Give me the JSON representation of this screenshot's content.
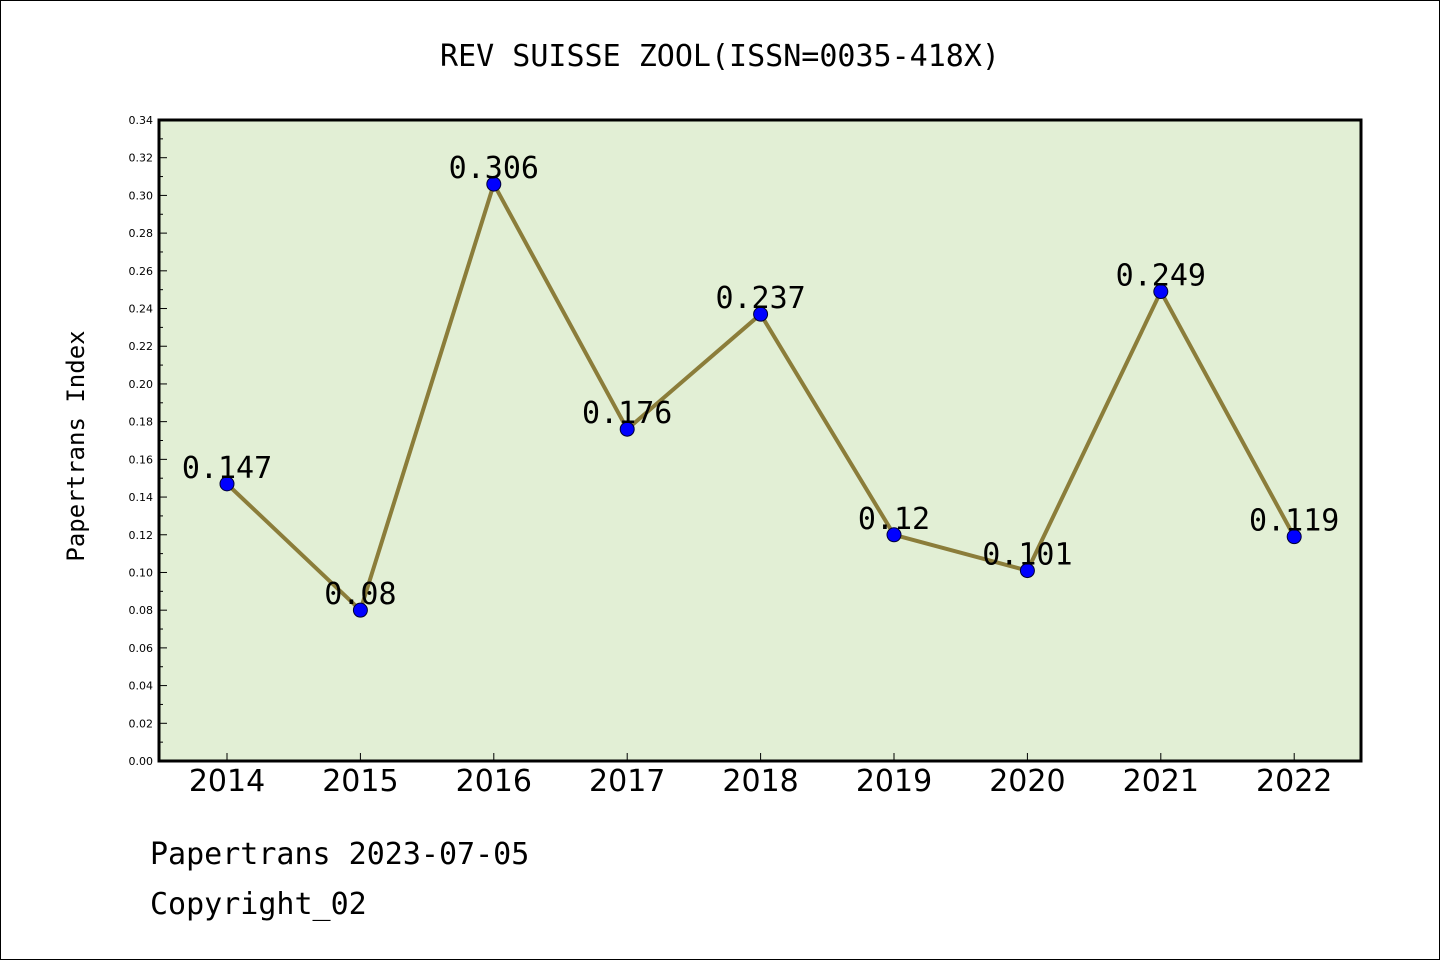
{
  "chart_data": {
    "type": "line",
    "title": "REV SUISSE ZOOL(ISSN=0035-418X)",
    "xlabel": "",
    "ylabel": "Papertrans Index",
    "categories": [
      "2014",
      "2015",
      "2016",
      "2017",
      "2018",
      "2019",
      "2020",
      "2021",
      "2022"
    ],
    "values": [
      0.147,
      0.08,
      0.306,
      0.176,
      0.237,
      0.12,
      0.101,
      0.249,
      0.119
    ],
    "data_labels": [
      "0.147",
      "0.08",
      "0.306",
      "0.176",
      "0.237",
      "0.12",
      "0.101",
      "0.249",
      "0.119"
    ],
    "ylim": [
      0,
      0.34
    ],
    "yticks": [
      "0.00",
      "0.02",
      "0.04",
      "0.06",
      "0.08",
      "0.10",
      "0.12",
      "0.14",
      "0.16",
      "0.18",
      "0.20",
      "0.22",
      "0.24",
      "0.26",
      "0.28",
      "0.30",
      "0.32",
      "0.34"
    ],
    "grid": false,
    "colors": {
      "plot_background": "#e2efd5",
      "line": "#8b7d3a",
      "marker": "#0000ff"
    }
  },
  "footer": {
    "line1": "Papertrans 2023-07-05",
    "line2": "Copyright_02"
  }
}
